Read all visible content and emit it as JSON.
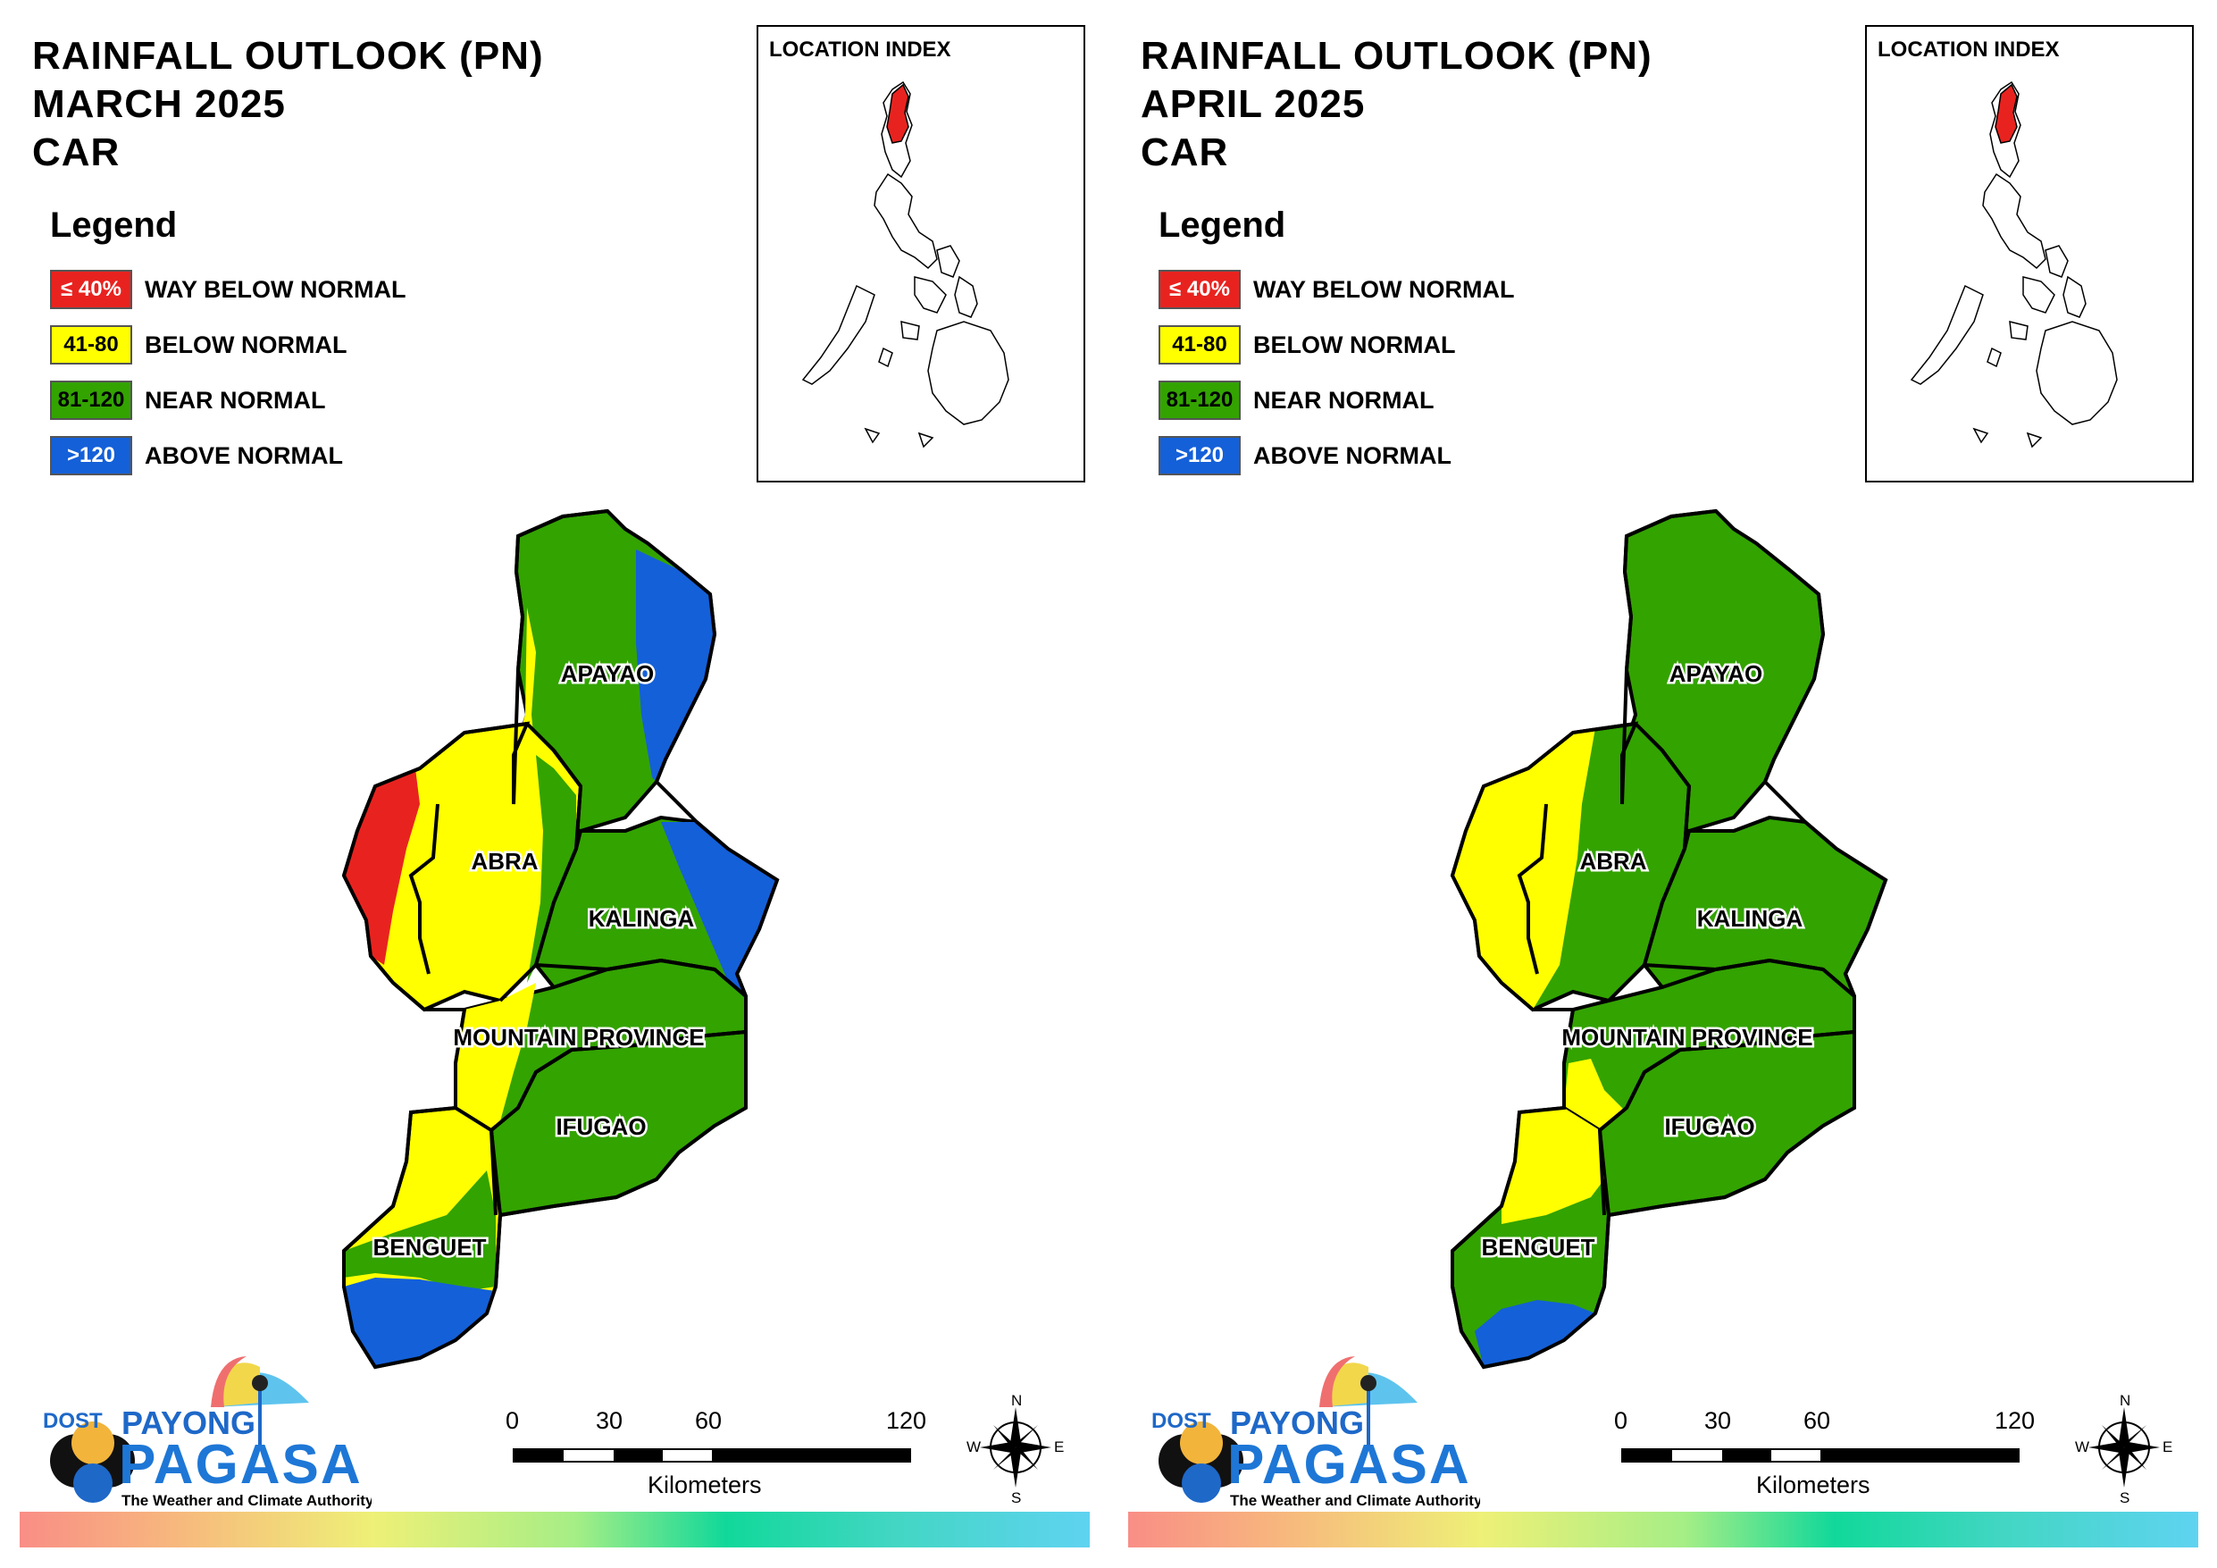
{
  "panels": [
    {
      "title_line1": "RAINFALL OUTLOOK (PN)",
      "title_line2": "MARCH 2025",
      "title_line3": "CAR",
      "province_fill": {
        "apayao": "#33a300",
        "abra": "#ffff00",
        "kalinga": "#33a300",
        "mountain_province": "#33a300",
        "ifugao": "#33a300",
        "benguet": "#ffff00"
      }
    },
    {
      "title_line1": "RAINFALL OUTLOOK (PN)",
      "title_line2": "APRIL 2025",
      "title_line3": "CAR",
      "province_fill": {
        "apayao": "#33a300",
        "abra": "#33a300",
        "kalinga": "#33a300",
        "mountain_province": "#33a300",
        "ifugao": "#33a300",
        "benguet": "#33a300"
      }
    }
  ],
  "legend": {
    "title": "Legend",
    "items": [
      {
        "range": "≤ 40%",
        "label": "WAY BELOW NORMAL",
        "color": "#e8231f",
        "text_color": "#ffffff"
      },
      {
        "range": "41-80",
        "label": "BELOW NORMAL",
        "color": "#ffff00",
        "text_color": "#000000"
      },
      {
        "range": "81-120",
        "label": "NEAR NORMAL",
        "color": "#33a300",
        "text_color": "#000000"
      },
      {
        "range": ">120",
        "label": "ABOVE NORMAL",
        "color": "#1460d8",
        "text_color": "#ffffff"
      }
    ]
  },
  "location_index": {
    "title": "LOCATION INDEX",
    "highlight_color": "#e8231f"
  },
  "provinces": {
    "apayao": "APAYAO",
    "abra": "ABRA",
    "kalinga": "KALINGA",
    "mountain_province": "MOUNTAIN PROVINCE",
    "ifugao": "IFUGAO",
    "benguet": "BENGUET"
  },
  "scale": {
    "ticks": [
      "0",
      "30",
      "60",
      "120"
    ],
    "unit": "Kilometers"
  },
  "compass": {
    "n": "N",
    "e": "E",
    "s": "S",
    "w": "W"
  },
  "logo": {
    "dost": "DOST",
    "payong": "PAYONG",
    "pagasa": "PAGASA",
    "tagline": "The Weather and Climate Authority"
  },
  "colors": {
    "red": "#e8231f",
    "yellow": "#ffff00",
    "green": "#33a300",
    "blue": "#1460d8"
  }
}
